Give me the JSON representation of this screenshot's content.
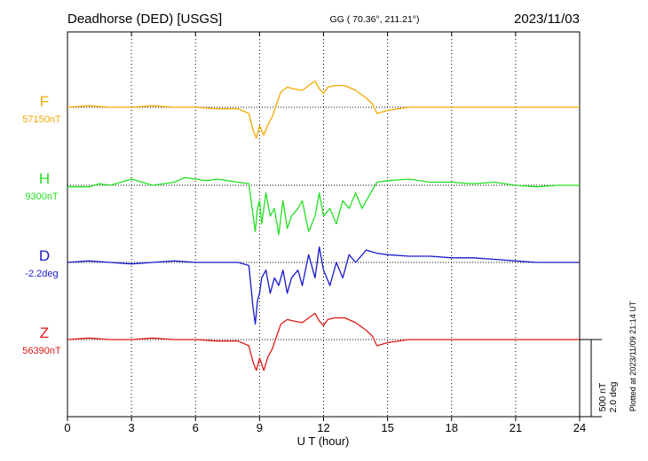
{
  "header": {
    "station": "Deadhorse (DED)  [USGS]",
    "coords": "GG ( 70.36°, 211.21°)",
    "date": "2023/11/03"
  },
  "footer": {
    "plotted_at": "Plotted at 2023/11/09 21:14 UT"
  },
  "chart_data": {
    "type": "line",
    "xlabel": "U T (hour)",
    "xlim": [
      0,
      24
    ],
    "xticks": [
      0,
      3,
      6,
      9,
      12,
      15,
      18,
      21,
      24
    ],
    "scale_bar": [
      "500 nT",
      "2.0 deg"
    ],
    "grid": true,
    "series": [
      {
        "name": "F",
        "baseline_label": "57150nT",
        "color": "#f5a800",
        "x": [
          0,
          1,
          2,
          3,
          4,
          5,
          6,
          7,
          8,
          8.5,
          8.7,
          8.85,
          9.0,
          9.2,
          9.4,
          9.6,
          9.8,
          10.0,
          10.3,
          10.6,
          11.0,
          11.4,
          11.6,
          11.8,
          12.0,
          12.2,
          12.5,
          13.0,
          13.5,
          14.0,
          14.3,
          14.5,
          15,
          16,
          17,
          18,
          19,
          20,
          21,
          22,
          23,
          24
        ],
        "y": [
          0,
          10,
          0,
          0,
          10,
          0,
          0,
          -10,
          -10,
          -40,
          -150,
          -200,
          -120,
          -180,
          -110,
          -60,
          20,
          100,
          130,
          120,
          110,
          150,
          170,
          120,
          90,
          130,
          140,
          140,
          110,
          60,
          20,
          -40,
          -20,
          0,
          0,
          0,
          0,
          0,
          0,
          0,
          0,
          0
        ]
      },
      {
        "name": "H",
        "baseline_label": "9300nT",
        "color": "#22e022",
        "x": [
          0,
          1,
          1.5,
          2,
          2.5,
          3,
          3.5,
          4,
          5,
          5.5,
          6,
          6.5,
          7,
          8,
          8.5,
          8.7,
          8.8,
          8.9,
          9.0,
          9.1,
          9.3,
          9.5,
          9.7,
          9.9,
          10.1,
          10.3,
          10.5,
          10.8,
          11.0,
          11.3,
          11.6,
          11.8,
          12.0,
          12.3,
          12.6,
          12.9,
          13.2,
          13.5,
          13.8,
          14.0,
          14.5,
          15,
          16,
          17,
          18,
          19,
          20,
          21,
          22,
          23,
          24
        ],
        "y": [
          -10,
          -10,
          10,
          0,
          20,
          40,
          20,
          0,
          20,
          50,
          40,
          30,
          40,
          20,
          10,
          -200,
          -300,
          -150,
          -100,
          -250,
          -50,
          -200,
          -150,
          -320,
          -100,
          -280,
          -200,
          -150,
          -100,
          -300,
          -200,
          -50,
          -200,
          -150,
          -250,
          -100,
          -150,
          -50,
          -150,
          -100,
          20,
          30,
          40,
          20,
          20,
          10,
          20,
          0,
          -10,
          0,
          0
        ]
      },
      {
        "name": "D",
        "baseline_label": "-2.2deg",
        "color": "#1818cc",
        "x": [
          0,
          1,
          2,
          3,
          4,
          5,
          6,
          7,
          8,
          8.5,
          8.7,
          8.8,
          8.9,
          9.0,
          9.1,
          9.3,
          9.5,
          9.7,
          9.9,
          10.1,
          10.3,
          10.5,
          10.8,
          11.0,
          11.3,
          11.6,
          11.8,
          12.0,
          12.3,
          12.6,
          12.9,
          13.2,
          13.5,
          14.0,
          14.5,
          15,
          16,
          17,
          18,
          19,
          20,
          21,
          22,
          23,
          24
        ],
        "y": [
          0,
          10,
          0,
          -10,
          0,
          10,
          0,
          0,
          0,
          -20,
          -300,
          -400,
          -250,
          -200,
          -100,
          -50,
          -200,
          -100,
          -150,
          -50,
          -200,
          -100,
          -50,
          -150,
          50,
          -100,
          100,
          -50,
          -150,
          0,
          -100,
          50,
          0,
          80,
          60,
          50,
          40,
          40,
          30,
          30,
          20,
          10,
          0,
          0,
          0
        ]
      },
      {
        "name": "Z",
        "baseline_label": "56390nT",
        "color": "#e01818",
        "x": [
          0,
          1,
          2,
          3,
          4,
          5,
          6,
          7,
          8,
          8.5,
          8.7,
          8.85,
          9.0,
          9.2,
          9.4,
          9.6,
          9.8,
          10.0,
          10.3,
          10.6,
          11.0,
          11.4,
          11.6,
          11.8,
          12.0,
          12.2,
          12.5,
          13.0,
          13.5,
          14.0,
          14.3,
          14.5,
          15,
          16,
          17,
          18,
          19,
          20,
          21,
          22,
          23,
          24
        ],
        "y": [
          0,
          10,
          0,
          0,
          10,
          0,
          0,
          -10,
          -10,
          -40,
          -150,
          -200,
          -120,
          -200,
          -110,
          -60,
          20,
          100,
          130,
          120,
          110,
          150,
          170,
          120,
          90,
          130,
          140,
          140,
          110,
          60,
          20,
          -40,
          -20,
          0,
          0,
          0,
          0,
          0,
          0,
          0,
          0,
          0
        ]
      }
    ]
  }
}
